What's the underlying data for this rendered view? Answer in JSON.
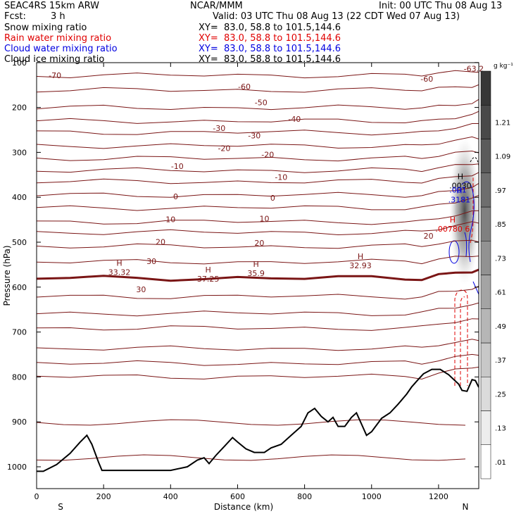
{
  "header": {
    "model": "SEAC4RS 15km ARW",
    "org": "NCAR/MMM",
    "init": "Init: 00 UTC Thu 08 Aug 13",
    "fcst_label": "Fcst:",
    "fcst_value": "3 h",
    "valid": "Valid: 03 UTC Thu 08 Aug 13 (22 CDT Wed 07 Aug 13)",
    "fields": [
      {
        "name": "Snow mixing ratio",
        "xy": "XY=  83.0, 58.8 to 101.5,144.6",
        "color": "#000000"
      },
      {
        "name": "Rain water mixing ratio",
        "xy": "XY=  83.0, 58.8 to 101.5,144.6",
        "color": "#e00000"
      },
      {
        "name": "Cloud water mixing ratio",
        "xy": "XY=  83.0, 58.8 to 101.5,144.6",
        "color": "#0000e0"
      },
      {
        "name": "Cloud ice mixing ratio",
        "xy": "XY=  83.0, 58.8 to 101.5,144.6",
        "color": "#000000"
      }
    ]
  },
  "colors": {
    "temperature": "#7a1515",
    "zero_isotherm": "#7a1515",
    "terrain": "#000000",
    "rain": "#e00000",
    "cloud_water": "#0000e0"
  },
  "chart_data": {
    "type": "cross-section",
    "xlabel": "Distance (km)",
    "ylabel": "Pressure (hPa)",
    "xlim": [
      0,
      1320
    ],
    "ylim": [
      1050,
      100
    ],
    "x_ticks": [
      "0",
      "200",
      "400",
      "600",
      "800",
      "1000",
      "1200"
    ],
    "y_ticks": [
      "100",
      "200",
      "300",
      "400",
      "500",
      "600",
      "700",
      "800",
      "900",
      "1000"
    ],
    "end_labels": {
      "left": "S",
      "right": "N"
    },
    "isotherms": [
      {
        "value": -70,
        "pressure": 128
      },
      {
        "value": -60,
        "pressure": 153
      },
      {
        "value": -50,
        "pressure": 188
      },
      {
        "value": -40,
        "pressure": 225
      },
      {
        "value": -30,
        "pressure": 258
      },
      {
        "value": -20,
        "pressure": 295
      },
      {
        "value": -10,
        "pressure": 350
      },
      {
        "value": 0,
        "pressure": 395
      },
      {
        "value": 10,
        "pressure": 445
      },
      {
        "value": 20,
        "pressure": 495
      },
      {
        "value": 30,
        "pressure": 535
      }
    ],
    "contour_labels": [
      {
        "text": "-70",
        "x": 55,
        "p": 128
      },
      {
        "text": "-60",
        "x": 620,
        "p": 153
      },
      {
        "text": "-60",
        "x": 1165,
        "p": 136
      },
      {
        "text": "-63.2",
        "x": 1305,
        "p": 113
      },
      {
        "text": "-50",
        "x": 670,
        "p": 188
      },
      {
        "text": "-40",
        "x": 770,
        "p": 225
      },
      {
        "text": "-30",
        "x": 545,
        "p": 245
      },
      {
        "text": "-30",
        "x": 650,
        "p": 262
      },
      {
        "text": "-20",
        "x": 560,
        "p": 290
      },
      {
        "text": "-20",
        "x": 690,
        "p": 304
      },
      {
        "text": "-10",
        "x": 420,
        "p": 330
      },
      {
        "text": "-10",
        "x": 730,
        "p": 354
      },
      {
        "text": "0",
        "x": 415,
        "p": 397
      },
      {
        "text": "0",
        "x": 705,
        "p": 400
      },
      {
        "text": "10",
        "x": 400,
        "p": 448
      },
      {
        "text": "10",
        "x": 680,
        "p": 446
      },
      {
        "text": "20",
        "x": 370,
        "p": 498
      },
      {
        "text": "20",
        "x": 665,
        "p": 500
      },
      {
        "text": "20",
        "x": 1170,
        "p": 484
      },
      {
        "text": "30",
        "x": 343,
        "p": 541
      },
      {
        "text": "30",
        "x": 312,
        "p": 603
      }
    ],
    "extrema_labels": [
      {
        "mark": "H",
        "value": "33.32",
        "x": 247,
        "p": 557
      },
      {
        "mark": "H",
        "value": "37.25",
        "x": 512,
        "p": 572
      },
      {
        "mark": "H",
        "value": "35.9",
        "x": 655,
        "p": 559
      },
      {
        "mark": "H",
        "value": "32.93",
        "x": 967,
        "p": 542
      },
      {
        "mark": "H",
        "value": ".00780 6",
        "x": 1242,
        "p": 461
      },
      {
        "mark": "H",
        "value": ".0030",
        "x": 1265,
        "p": 365
      },
      {
        "mark": "H",
        "value": ".3181",
        "x": 1262,
        "p": 396
      }
    ],
    "cloud_water_labels": [
      {
        "text": ".001",
        "x": 1258,
        "p": 382
      }
    ],
    "terrain": [
      [
        0,
        1010
      ],
      [
        20,
        1010
      ],
      [
        60,
        995
      ],
      [
        100,
        970
      ],
      [
        130,
        945
      ],
      [
        150,
        930
      ],
      [
        165,
        950
      ],
      [
        185,
        990
      ],
      [
        195,
        1008
      ],
      [
        260,
        1008
      ],
      [
        320,
        1008
      ],
      [
        400,
        1008
      ],
      [
        450,
        1000
      ],
      [
        480,
        985
      ],
      [
        500,
        980
      ],
      [
        515,
        993
      ],
      [
        535,
        975
      ],
      [
        560,
        955
      ],
      [
        585,
        935
      ],
      [
        600,
        945
      ],
      [
        625,
        960
      ],
      [
        650,
        968
      ],
      [
        680,
        968
      ],
      [
        700,
        958
      ],
      [
        730,
        950
      ],
      [
        760,
        930
      ],
      [
        790,
        910
      ],
      [
        810,
        880
      ],
      [
        830,
        870
      ],
      [
        850,
        888
      ],
      [
        870,
        900
      ],
      [
        885,
        890
      ],
      [
        900,
        910
      ],
      [
        920,
        910
      ],
      [
        940,
        890
      ],
      [
        955,
        880
      ],
      [
        970,
        905
      ],
      [
        985,
        930
      ],
      [
        1000,
        922
      ],
      [
        1010,
        912
      ],
      [
        1030,
        892
      ],
      [
        1055,
        880
      ],
      [
        1080,
        860
      ],
      [
        1105,
        838
      ],
      [
        1120,
        822
      ],
      [
        1140,
        805
      ],
      [
        1155,
        793
      ],
      [
        1180,
        783
      ],
      [
        1205,
        783
      ],
      [
        1230,
        795
      ],
      [
        1260,
        816
      ],
      [
        1270,
        830
      ],
      [
        1285,
        832
      ],
      [
        1300,
        806
      ],
      [
        1310,
        808
      ],
      [
        1320,
        823
      ]
    ],
    "colorbar": {
      "unit": "g kg⁻¹",
      "ticks": [
        ".01",
        ".13",
        ".25",
        ".37",
        ".49",
        ".61",
        ".73",
        ".85",
        ".97",
        "1.09",
        "1.21"
      ]
    }
  }
}
